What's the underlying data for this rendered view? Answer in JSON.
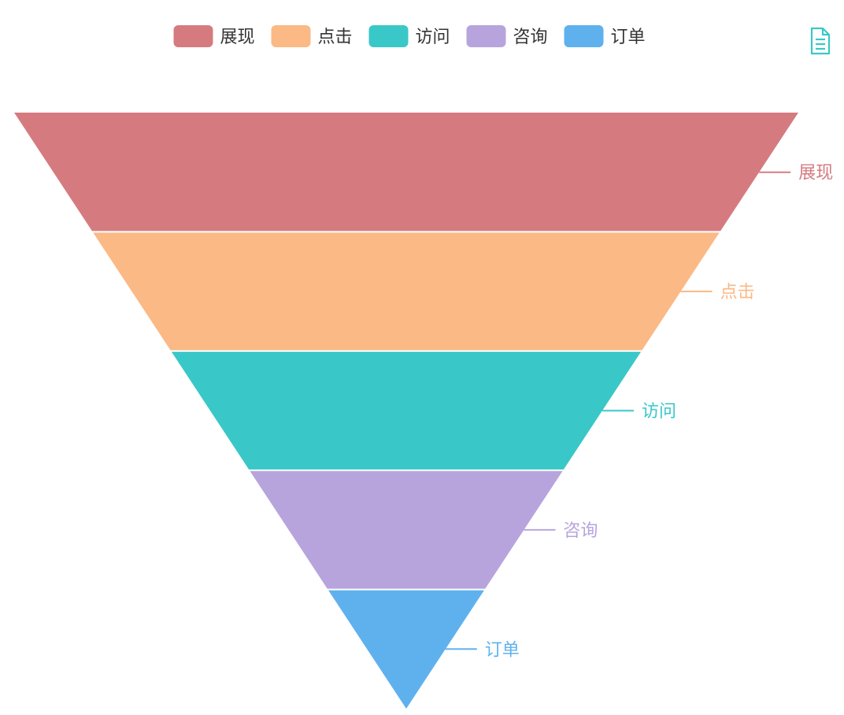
{
  "chart_data": {
    "type": "funnel",
    "title": "",
    "legend_position": "top-center",
    "sort": "descending",
    "categories": [
      "展现",
      "点击",
      "访问",
      "咨询",
      "订单"
    ],
    "values": [
      100,
      80,
      60,
      40,
      20
    ],
    "colors": [
      "#d57b80",
      "#fbb985",
      "#3ac7c8",
      "#b7a4dd",
      "#5fb1ee"
    ],
    "legend": [
      {
        "name": "展现",
        "color": "#d57b80"
      },
      {
        "name": "点击",
        "color": "#fbb985"
      },
      {
        "name": "访问",
        "color": "#3ac7c8"
      },
      {
        "name": "咨询",
        "color": "#b7a4dd"
      },
      {
        "name": "订单",
        "color": "#5fb1ee"
      }
    ]
  },
  "toolbox": {
    "icon": "data-view-icon",
    "color": "#3ac7c8"
  }
}
